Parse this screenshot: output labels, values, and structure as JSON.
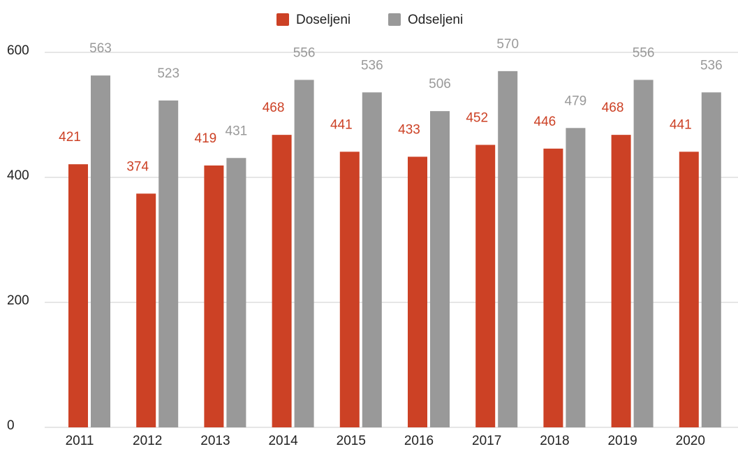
{
  "chart_data": {
    "type": "bar",
    "categories": [
      "2011",
      "2012",
      "2013",
      "2014",
      "2015",
      "2016",
      "2017",
      "2018",
      "2019",
      "2020"
    ],
    "series": [
      {
        "name": "Doseljeni",
        "color": "#cc4125",
        "values": [
          421,
          374,
          419,
          468,
          441,
          433,
          452,
          446,
          468,
          441
        ]
      },
      {
        "name": "Odseljeni",
        "color": "#999999",
        "values": [
          563,
          523,
          431,
          556,
          536,
          506,
          570,
          479,
          556,
          536
        ]
      }
    ],
    "ylim": [
      0,
      600
    ],
    "yticks": [
      0,
      200,
      400,
      600
    ],
    "grid": true,
    "legend": "top"
  }
}
